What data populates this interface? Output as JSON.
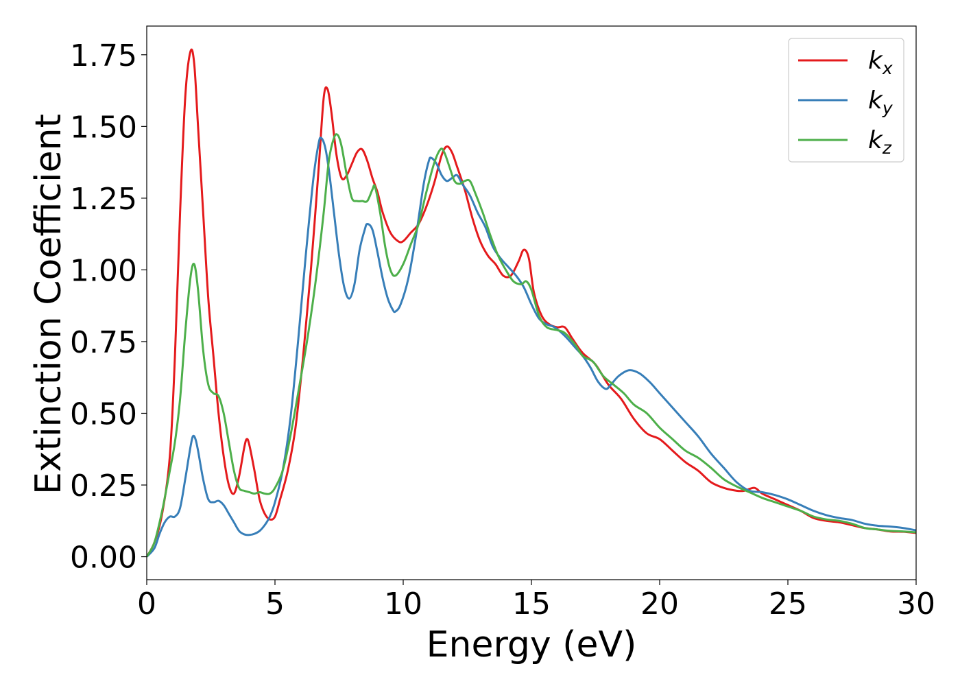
{
  "chart_data": {
    "type": "line",
    "title": "",
    "xlabel": "Energy (eV)",
    "ylabel": "Extinction Coefficient",
    "xlim": [
      0,
      30
    ],
    "ylim": [
      -0.08,
      1.85
    ],
    "xticks": [
      0,
      5,
      10,
      15,
      20,
      25,
      30
    ],
    "xtick_labels": [
      "0",
      "5",
      "10",
      "15",
      "20",
      "25",
      "30"
    ],
    "yticks": [
      0.0,
      0.25,
      0.5,
      0.75,
      1.0,
      1.25,
      1.5,
      1.75
    ],
    "ytick_labels": [
      "0.00",
      "0.25",
      "0.50",
      "0.75",
      "1.00",
      "1.25",
      "1.50",
      "1.75"
    ],
    "grid": false,
    "legend_position": "top-right",
    "series": [
      {
        "name": "k_x",
        "label_base": "k",
        "label_sub": "x",
        "color": "#e41a1c",
        "points": [
          [
            0,
            0
          ],
          [
            0.3,
            0.05
          ],
          [
            0.6,
            0.15
          ],
          [
            0.9,
            0.35
          ],
          [
            1.1,
            0.7
          ],
          [
            1.3,
            1.2
          ],
          [
            1.5,
            1.6
          ],
          [
            1.7,
            1.76
          ],
          [
            1.85,
            1.72
          ],
          [
            2.0,
            1.5
          ],
          [
            2.2,
            1.2
          ],
          [
            2.4,
            0.9
          ],
          [
            2.6,
            0.7
          ],
          [
            2.8,
            0.5
          ],
          [
            3.0,
            0.35
          ],
          [
            3.2,
            0.25
          ],
          [
            3.4,
            0.22
          ],
          [
            3.6,
            0.28
          ],
          [
            3.8,
            0.38
          ],
          [
            3.9,
            0.41
          ],
          [
            4.0,
            0.39
          ],
          [
            4.2,
            0.3
          ],
          [
            4.4,
            0.2
          ],
          [
            4.6,
            0.15
          ],
          [
            4.8,
            0.13
          ],
          [
            5.0,
            0.14
          ],
          [
            5.2,
            0.2
          ],
          [
            5.5,
            0.3
          ],
          [
            5.8,
            0.45
          ],
          [
            6.1,
            0.7
          ],
          [
            6.4,
            1.0
          ],
          [
            6.7,
            1.35
          ],
          [
            6.9,
            1.6
          ],
          [
            7.05,
            1.63
          ],
          [
            7.2,
            1.55
          ],
          [
            7.4,
            1.4
          ],
          [
            7.6,
            1.32
          ],
          [
            7.8,
            1.33
          ],
          [
            8.0,
            1.37
          ],
          [
            8.2,
            1.41
          ],
          [
            8.4,
            1.42
          ],
          [
            8.6,
            1.38
          ],
          [
            8.8,
            1.32
          ],
          [
            9.0,
            1.27
          ],
          [
            9.2,
            1.2
          ],
          [
            9.5,
            1.13
          ],
          [
            9.8,
            1.1
          ],
          [
            10.0,
            1.1
          ],
          [
            10.3,
            1.13
          ],
          [
            10.6,
            1.16
          ],
          [
            10.9,
            1.22
          ],
          [
            11.2,
            1.3
          ],
          [
            11.5,
            1.4
          ],
          [
            11.7,
            1.43
          ],
          [
            11.9,
            1.41
          ],
          [
            12.1,
            1.36
          ],
          [
            12.4,
            1.28
          ],
          [
            12.7,
            1.18
          ],
          [
            13.0,
            1.1
          ],
          [
            13.3,
            1.05
          ],
          [
            13.6,
            1.02
          ],
          [
            13.9,
            0.98
          ],
          [
            14.2,
            0.98
          ],
          [
            14.5,
            1.03
          ],
          [
            14.7,
            1.07
          ],
          [
            14.9,
            1.04
          ],
          [
            15.1,
            0.92
          ],
          [
            15.4,
            0.84
          ],
          [
            15.7,
            0.81
          ],
          [
            16.0,
            0.8
          ],
          [
            16.3,
            0.8
          ],
          [
            16.6,
            0.76
          ],
          [
            17.0,
            0.71
          ],
          [
            17.5,
            0.67
          ],
          [
            18.0,
            0.6
          ],
          [
            18.5,
            0.55
          ],
          [
            19.0,
            0.48
          ],
          [
            19.5,
            0.43
          ],
          [
            20.0,
            0.41
          ],
          [
            20.5,
            0.37
          ],
          [
            21.0,
            0.33
          ],
          [
            21.5,
            0.3
          ],
          [
            22.0,
            0.26
          ],
          [
            22.5,
            0.24
          ],
          [
            23.0,
            0.23
          ],
          [
            23.3,
            0.23
          ],
          [
            23.7,
            0.24
          ],
          [
            24.0,
            0.22
          ],
          [
            24.5,
            0.2
          ],
          [
            25.0,
            0.18
          ],
          [
            25.5,
            0.16
          ],
          [
            26.0,
            0.135
          ],
          [
            26.5,
            0.125
          ],
          [
            27.0,
            0.12
          ],
          [
            27.5,
            0.11
          ],
          [
            28.0,
            0.1
          ],
          [
            28.5,
            0.095
          ],
          [
            29.0,
            0.088
          ],
          [
            29.5,
            0.087
          ],
          [
            30.0,
            0.083
          ]
        ]
      },
      {
        "name": "k_y",
        "label_base": "k",
        "label_sub": "y",
        "color": "#377eb8",
        "points": [
          [
            0,
            0
          ],
          [
            0.3,
            0.03
          ],
          [
            0.5,
            0.08
          ],
          [
            0.7,
            0.12
          ],
          [
            0.9,
            0.14
          ],
          [
            1.1,
            0.14
          ],
          [
            1.3,
            0.17
          ],
          [
            1.5,
            0.27
          ],
          [
            1.7,
            0.38
          ],
          [
            1.8,
            0.42
          ],
          [
            1.9,
            0.41
          ],
          [
            2.0,
            0.37
          ],
          [
            2.2,
            0.27
          ],
          [
            2.4,
            0.2
          ],
          [
            2.6,
            0.19
          ],
          [
            2.8,
            0.195
          ],
          [
            3.0,
            0.18
          ],
          [
            3.2,
            0.15
          ],
          [
            3.4,
            0.12
          ],
          [
            3.6,
            0.09
          ],
          [
            3.8,
            0.078
          ],
          [
            4.0,
            0.076
          ],
          [
            4.2,
            0.08
          ],
          [
            4.4,
            0.09
          ],
          [
            4.6,
            0.11
          ],
          [
            4.8,
            0.14
          ],
          [
            5.0,
            0.19
          ],
          [
            5.3,
            0.3
          ],
          [
            5.6,
            0.48
          ],
          [
            5.9,
            0.75
          ],
          [
            6.2,
            1.05
          ],
          [
            6.5,
            1.32
          ],
          [
            6.7,
            1.44
          ],
          [
            6.8,
            1.46
          ],
          [
            6.95,
            1.43
          ],
          [
            7.1,
            1.35
          ],
          [
            7.3,
            1.2
          ],
          [
            7.5,
            1.05
          ],
          [
            7.7,
            0.94
          ],
          [
            7.9,
            0.9
          ],
          [
            8.1,
            0.95
          ],
          [
            8.3,
            1.07
          ],
          [
            8.5,
            1.14
          ],
          [
            8.6,
            1.16
          ],
          [
            8.8,
            1.14
          ],
          [
            9.0,
            1.06
          ],
          [
            9.2,
            0.97
          ],
          [
            9.4,
            0.9
          ],
          [
            9.6,
            0.86
          ],
          [
            9.7,
            0.855
          ],
          [
            9.9,
            0.88
          ],
          [
            10.2,
            0.97
          ],
          [
            10.5,
            1.12
          ],
          [
            10.8,
            1.3
          ],
          [
            11.0,
            1.38
          ],
          [
            11.1,
            1.39
          ],
          [
            11.3,
            1.37
          ],
          [
            11.5,
            1.33
          ],
          [
            11.7,
            1.31
          ],
          [
            11.9,
            1.32
          ],
          [
            12.1,
            1.33
          ],
          [
            12.3,
            1.3
          ],
          [
            12.6,
            1.26
          ],
          [
            12.9,
            1.2
          ],
          [
            13.2,
            1.15
          ],
          [
            13.5,
            1.08
          ],
          [
            13.8,
            1.04
          ],
          [
            14.1,
            1.01
          ],
          [
            14.4,
            0.98
          ],
          [
            14.7,
            0.94
          ],
          [
            15.0,
            0.88
          ],
          [
            15.3,
            0.83
          ],
          [
            15.6,
            0.81
          ],
          [
            15.9,
            0.8
          ],
          [
            16.3,
            0.77
          ],
          [
            16.7,
            0.73
          ],
          [
            17.0,
            0.7
          ],
          [
            17.3,
            0.66
          ],
          [
            17.6,
            0.61
          ],
          [
            17.9,
            0.585
          ],
          [
            18.1,
            0.6
          ],
          [
            18.4,
            0.63
          ],
          [
            18.8,
            0.65
          ],
          [
            19.2,
            0.64
          ],
          [
            19.6,
            0.61
          ],
          [
            20.0,
            0.57
          ],
          [
            20.5,
            0.52
          ],
          [
            21.0,
            0.47
          ],
          [
            21.5,
            0.42
          ],
          [
            22.0,
            0.36
          ],
          [
            22.5,
            0.31
          ],
          [
            23.0,
            0.26
          ],
          [
            23.5,
            0.23
          ],
          [
            24.0,
            0.225
          ],
          [
            24.5,
            0.215
          ],
          [
            25.0,
            0.2
          ],
          [
            25.5,
            0.18
          ],
          [
            26.0,
            0.16
          ],
          [
            26.5,
            0.145
          ],
          [
            27.0,
            0.135
          ],
          [
            27.5,
            0.128
          ],
          [
            28.0,
            0.115
          ],
          [
            28.5,
            0.108
          ],
          [
            29.0,
            0.105
          ],
          [
            29.5,
            0.1
          ],
          [
            30.0,
            0.092
          ]
        ]
      },
      {
        "name": "k_z",
        "label_base": "k",
        "label_sub": "z",
        "color": "#4daf4a",
        "points": [
          [
            0,
            0
          ],
          [
            0.3,
            0.05
          ],
          [
            0.6,
            0.16
          ],
          [
            0.9,
            0.3
          ],
          [
            1.1,
            0.4
          ],
          [
            1.3,
            0.55
          ],
          [
            1.5,
            0.78
          ],
          [
            1.7,
            0.97
          ],
          [
            1.85,
            1.02
          ],
          [
            2.0,
            0.93
          ],
          [
            2.2,
            0.72
          ],
          [
            2.4,
            0.6
          ],
          [
            2.6,
            0.57
          ],
          [
            2.8,
            0.56
          ],
          [
            3.0,
            0.5
          ],
          [
            3.2,
            0.4
          ],
          [
            3.4,
            0.3
          ],
          [
            3.6,
            0.24
          ],
          [
            3.8,
            0.23
          ],
          [
            4.0,
            0.225
          ],
          [
            4.2,
            0.22
          ],
          [
            4.4,
            0.225
          ],
          [
            4.6,
            0.22
          ],
          [
            4.8,
            0.22
          ],
          [
            5.0,
            0.24
          ],
          [
            5.3,
            0.3
          ],
          [
            5.6,
            0.42
          ],
          [
            6.0,
            0.62
          ],
          [
            6.3,
            0.78
          ],
          [
            6.6,
            0.97
          ],
          [
            6.9,
            1.2
          ],
          [
            7.1,
            1.38
          ],
          [
            7.3,
            1.46
          ],
          [
            7.45,
            1.47
          ],
          [
            7.6,
            1.43
          ],
          [
            7.8,
            1.33
          ],
          [
            8.0,
            1.25
          ],
          [
            8.2,
            1.24
          ],
          [
            8.4,
            1.24
          ],
          [
            8.6,
            1.24
          ],
          [
            8.8,
            1.28
          ],
          [
            8.9,
            1.29
          ],
          [
            9.1,
            1.2
          ],
          [
            9.3,
            1.08
          ],
          [
            9.5,
            1.0
          ],
          [
            9.7,
            0.98
          ],
          [
            10.0,
            1.02
          ],
          [
            10.3,
            1.09
          ],
          [
            10.6,
            1.16
          ],
          [
            10.9,
            1.27
          ],
          [
            11.2,
            1.37
          ],
          [
            11.45,
            1.42
          ],
          [
            11.6,
            1.41
          ],
          [
            11.8,
            1.36
          ],
          [
            12.0,
            1.31
          ],
          [
            12.2,
            1.3
          ],
          [
            12.4,
            1.31
          ],
          [
            12.6,
            1.31
          ],
          [
            12.8,
            1.27
          ],
          [
            13.1,
            1.2
          ],
          [
            13.4,
            1.12
          ],
          [
            13.7,
            1.05
          ],
          [
            14.0,
            1.0
          ],
          [
            14.3,
            0.96
          ],
          [
            14.6,
            0.95
          ],
          [
            14.8,
            0.96
          ],
          [
            15.0,
            0.93
          ],
          [
            15.3,
            0.84
          ],
          [
            15.6,
            0.8
          ],
          [
            16.0,
            0.79
          ],
          [
            16.3,
            0.78
          ],
          [
            16.7,
            0.74
          ],
          [
            17.0,
            0.7
          ],
          [
            17.4,
            0.68
          ],
          [
            17.8,
            0.63
          ],
          [
            18.2,
            0.6
          ],
          [
            18.6,
            0.57
          ],
          [
            19.0,
            0.53
          ],
          [
            19.5,
            0.5
          ],
          [
            20.0,
            0.45
          ],
          [
            20.5,
            0.41
          ],
          [
            21.0,
            0.37
          ],
          [
            21.5,
            0.345
          ],
          [
            22.0,
            0.31
          ],
          [
            22.5,
            0.27
          ],
          [
            23.0,
            0.245
          ],
          [
            23.5,
            0.225
          ],
          [
            24.0,
            0.205
          ],
          [
            24.5,
            0.19
          ],
          [
            25.0,
            0.175
          ],
          [
            25.5,
            0.16
          ],
          [
            26.0,
            0.14
          ],
          [
            26.5,
            0.13
          ],
          [
            27.0,
            0.125
          ],
          [
            27.5,
            0.115
          ],
          [
            28.0,
            0.1
          ],
          [
            28.5,
            0.095
          ],
          [
            29.0,
            0.09
          ],
          [
            29.5,
            0.088
          ],
          [
            30.0,
            0.085
          ]
        ]
      }
    ]
  }
}
